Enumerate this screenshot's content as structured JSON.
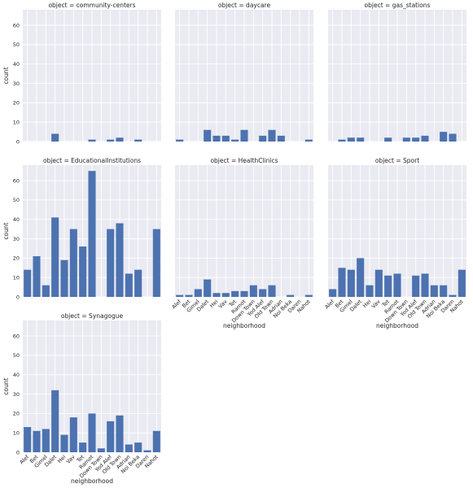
{
  "chart_data": {
    "type": "bar",
    "facet_title_prefix": "object = ",
    "xlabel": "neighborhood",
    "ylabel": "count",
    "ylim": [
      0,
      68
    ],
    "yticks": [
      0,
      10,
      20,
      30,
      40,
      50,
      60
    ],
    "grid": true,
    "bar_color": "#4c72b0",
    "panel_bg": "#eaeaf2",
    "categories": [
      "Alef",
      "Bet",
      "Gimel",
      "Dalet",
      "Hei",
      "Vav",
      "Tet",
      "Ramot",
      "Down Town",
      "Yod Alef",
      "Old Town",
      "Adrian",
      "Noi Beka",
      "Daren",
      "Nahot"
    ],
    "panels": [
      {
        "title": "community-centers",
        "values": [
          0,
          0,
          0,
          4,
          0,
          0,
          0,
          1,
          0,
          1,
          2,
          0,
          1,
          0,
          0
        ]
      },
      {
        "title": "daycare",
        "values": [
          1,
          0,
          0,
          6,
          3,
          3,
          1,
          6,
          0,
          3,
          6,
          3,
          0,
          0,
          1
        ]
      },
      {
        "title": "gas_stations",
        "values": [
          0,
          1,
          2,
          2,
          0,
          0,
          2,
          0,
          2,
          2,
          3,
          0,
          5,
          4,
          0
        ]
      },
      {
        "title": "EducationalInstitutions",
        "values": [
          14,
          21,
          6,
          41,
          19,
          35,
          26,
          65,
          0,
          35,
          38,
          12,
          14,
          0,
          35
        ]
      },
      {
        "title": "HealthClinics",
        "values": [
          1,
          1,
          4,
          9,
          2,
          2,
          3,
          3,
          6,
          4,
          6,
          0,
          1,
          0,
          1
        ]
      },
      {
        "title": "Sport",
        "values": [
          4,
          15,
          14,
          20,
          6,
          14,
          11,
          12,
          0,
          11,
          12,
          6,
          6,
          1,
          14
        ]
      },
      {
        "title": "Synagogue",
        "values": [
          13,
          11,
          12,
          32,
          9,
          18,
          5,
          20,
          2,
          16,
          19,
          4,
          5,
          1,
          11
        ]
      }
    ]
  }
}
